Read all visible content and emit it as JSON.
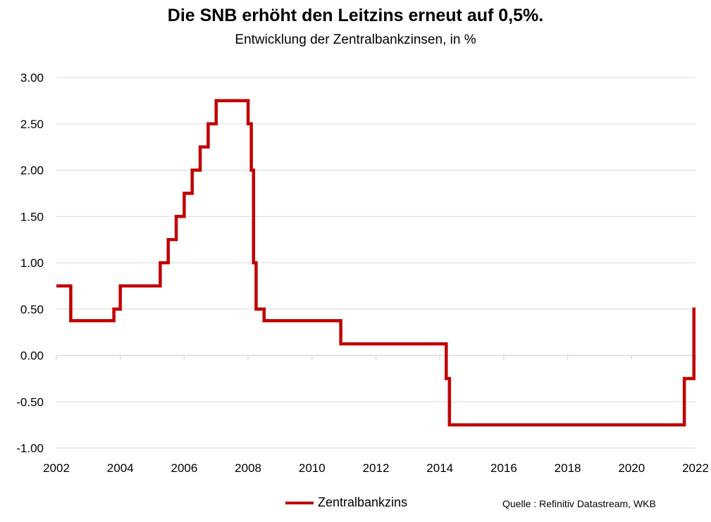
{
  "chart_data": {
    "type": "line",
    "title": "Die SNB erhöht den Leitzins erneut auf 0,5%.",
    "subtitle": "Entwicklung der Zentralbankzinsen, in %",
    "xlabel": "",
    "ylabel": "",
    "xlim": [
      2002,
      2022
    ],
    "ylim": [
      -1.0,
      3.0
    ],
    "x_ticks": [
      "2002",
      "2004",
      "2006",
      "2008",
      "2010",
      "2012",
      "2014",
      "2016",
      "2018",
      "2020",
      "2022"
    ],
    "y_ticks": [
      "3.00",
      "2.50",
      "2.00",
      "1.50",
      "1.00",
      "0.50",
      "0.00",
      "-0.50",
      "-1.00"
    ],
    "grid": true,
    "legend_position": "bottom",
    "step": true,
    "series": [
      {
        "name": "Zentralbankzins",
        "color": "#c00000",
        "x": [
          2002.0,
          2002.45,
          2003.8,
          2004.0,
          2005.25,
          2005.5,
          2005.75,
          2006.0,
          2006.25,
          2006.5,
          2006.75,
          2007.0,
          2008.0,
          2008.1,
          2008.17,
          2008.25,
          2008.5,
          2010.9,
          2014.2,
          2014.3,
          2021.65,
          2021.95
        ],
        "values": [
          0.75,
          0.375,
          0.5,
          0.75,
          1.0,
          1.25,
          1.5,
          1.75,
          2.0,
          2.25,
          2.5,
          2.75,
          2.5,
          2.0,
          1.0,
          0.5,
          0.375,
          0.125,
          -0.25,
          -0.75,
          -0.25,
          0.5
        ]
      }
    ],
    "source": "Quelle : Refinitiv Datastream, WKB"
  }
}
